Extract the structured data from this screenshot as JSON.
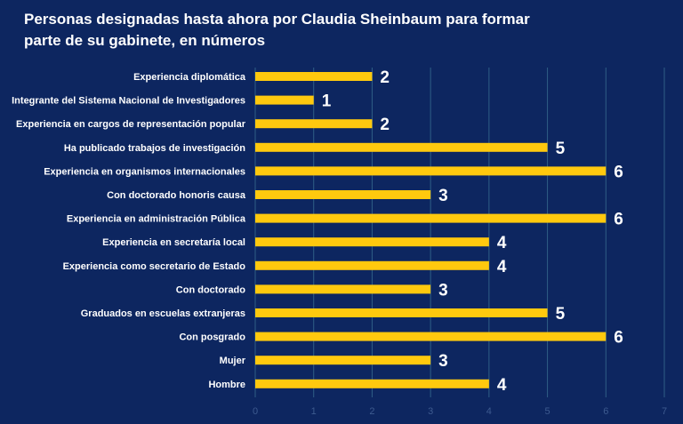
{
  "chart_data": {
    "type": "bar",
    "orientation": "horizontal",
    "title_lines": [
      "Personas designadas hasta ahora por Claudia Sheinbaum para formar",
      "parte de  su gabinete, en números"
    ],
    "categories": [
      "Experiencia diplomática",
      "Integrante del Sistema Nacional de Investigadores",
      "Experiencia en cargos de representación popular",
      "Ha publicado trabajos de investigación",
      "Experiencia en organismos internacionales",
      "Con doctorado honoris causa",
      "Experiencia en administración Pública",
      "Experiencia en secretaría local",
      "Experiencia como secretario de Estado",
      "Con doctorado",
      "Graduados en escuelas extranjeras",
      "Con posgrado",
      "Mujer",
      "Hombre"
    ],
    "values": [
      2,
      1,
      2,
      5,
      6,
      3,
      6,
      4,
      4,
      3,
      5,
      6,
      3,
      4
    ],
    "xlim": [
      0,
      7
    ],
    "xticks": [
      0,
      1,
      2,
      3,
      4,
      5,
      6,
      7
    ],
    "grid": true,
    "bar_color": "#ffc90e",
    "background_color": "#0d2660"
  }
}
